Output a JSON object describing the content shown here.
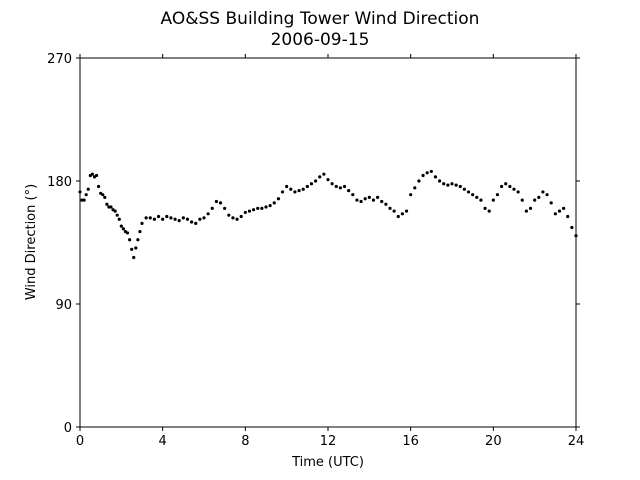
{
  "chart_data": {
    "type": "scatter",
    "title": "AO&SS Building Tower Wind Direction",
    "subtitle": "2006-09-15",
    "xlabel": "Time (UTC)",
    "ylabel": "Wind Direction (°)",
    "xlim": [
      0,
      24
    ],
    "ylim": [
      0,
      270
    ],
    "xticks": [
      0,
      4,
      8,
      12,
      16,
      20,
      24
    ],
    "yticks": [
      0,
      90,
      180,
      270
    ],
    "grid": false,
    "marker_color": "#000000",
    "series": [
      {
        "x": [
          0.0,
          0.1,
          0.2,
          0.3,
          0.4,
          0.5,
          0.6,
          0.7,
          0.8,
          0.9,
          1.0,
          1.1,
          1.2,
          1.3,
          1.4,
          1.5,
          1.6,
          1.7,
          1.8,
          1.9,
          2.0,
          2.1,
          2.2,
          2.3,
          2.4,
          2.5,
          2.6,
          2.7,
          2.8,
          2.9,
          3.0,
          3.2,
          3.4,
          3.6,
          3.8,
          4.0,
          4.2,
          4.4,
          4.6,
          4.8,
          5.0,
          5.2,
          5.4,
          5.6,
          5.8,
          6.0,
          6.2,
          6.4,
          6.6,
          6.8,
          7.0,
          7.2,
          7.4,
          7.6,
          7.8,
          8.0,
          8.2,
          8.4,
          8.6,
          8.8,
          9.0,
          9.2,
          9.4,
          9.6,
          9.8,
          10.0,
          10.2,
          10.4,
          10.6,
          10.8,
          11.0,
          11.2,
          11.4,
          11.6,
          11.8,
          12.0,
          12.2,
          12.4,
          12.6,
          12.8,
          13.0,
          13.2,
          13.4,
          13.6,
          13.8,
          14.0,
          14.2,
          14.4,
          14.6,
          14.8,
          15.0,
          15.2,
          15.4,
          15.6,
          15.8,
          16.0,
          16.2,
          16.4,
          16.6,
          16.8,
          17.0,
          17.2,
          17.4,
          17.6,
          17.8,
          18.0,
          18.2,
          18.4,
          18.6,
          18.8,
          19.0,
          19.2,
          19.4,
          19.6,
          19.8,
          20.0,
          20.2,
          20.4,
          20.6,
          20.8,
          21.0,
          21.2,
          21.4,
          21.6,
          21.8,
          22.0,
          22.2,
          22.4,
          22.6,
          22.8,
          23.0,
          23.2,
          23.4,
          23.6,
          23.8,
          24.0
        ],
        "y": [
          172,
          166,
          166,
          170,
          174,
          184,
          185,
          183,
          184,
          176,
          171,
          170,
          168,
          163,
          161,
          161,
          159,
          158,
          155,
          152,
          147,
          145,
          143,
          142,
          137,
          130,
          124,
          131,
          137,
          143,
          149,
          153,
          153,
          152,
          154,
          152,
          154,
          153,
          152,
          151,
          153,
          152,
          150,
          149,
          152,
          153,
          156,
          160,
          165,
          164,
          160,
          155,
          153,
          152,
          154,
          157,
          158,
          159,
          160,
          160,
          161,
          162,
          164,
          167,
          172,
          176,
          174,
          172,
          173,
          174,
          176,
          178,
          180,
          183,
          185,
          181,
          178,
          176,
          175,
          176,
          173,
          170,
          166,
          165,
          167,
          168,
          166,
          168,
          165,
          163,
          160,
          158,
          154,
          156,
          158,
          170,
          175,
          180,
          184,
          186,
          187,
          183,
          180,
          178,
          177,
          178,
          177,
          176,
          174,
          172,
          170,
          168,
          166,
          160,
          158,
          166,
          170,
          176,
          178,
          176,
          174,
          172,
          166,
          158,
          160,
          166,
          168,
          172,
          170,
          164,
          156,
          158,
          160,
          154,
          146,
          140
        ]
      }
    ]
  }
}
